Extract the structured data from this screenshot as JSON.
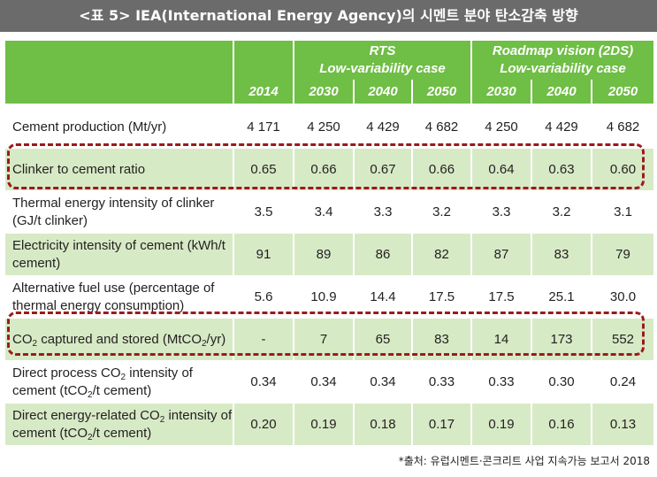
{
  "title": "<표 5> IEA(International Energy Agency)의 시멘트 분야 탄소감축 방향",
  "header": {
    "group_rts": "RTS",
    "group_rts_sub": "Low-variability case",
    "group_2ds": "Roadmap vision (2DS)",
    "group_2ds_sub": "Low-variability case",
    "years": [
      "2014",
      "2030",
      "2040",
      "2050",
      "2030",
      "2040",
      "2050"
    ]
  },
  "rows": [
    {
      "label": "Cement production (Mt/yr)",
      "values": [
        "4 171",
        "4 250",
        "4 429",
        "4 682",
        "4 250",
        "4 429",
        "4 682"
      ]
    },
    {
      "label": "Clinker to cement ratio",
      "values": [
        "0.65",
        "0.66",
        "0.67",
        "0.66",
        "0.64",
        "0.63",
        "0.60"
      ]
    },
    {
      "label": "Thermal energy intensity of clinker (GJ/t clinker)",
      "values": [
        "3.5",
        "3.4",
        "3.3",
        "3.2",
        "3.3",
        "3.2",
        "3.1"
      ]
    },
    {
      "label": "Electricity intensity of cement (kWh/t cement)",
      "values": [
        "91",
        "89",
        "86",
        "82",
        "87",
        "83",
        "79"
      ]
    },
    {
      "label": "Alternative fuel use (percentage of thermal energy consumption)",
      "values": [
        "5.6",
        "10.9",
        "14.4",
        "17.5",
        "17.5",
        "25.1",
        "30.0"
      ]
    },
    {
      "label_parts": [
        "CO",
        "2",
        " captured and stored (MtCO",
        "2",
        "/yr)"
      ],
      "values": [
        "-",
        "7",
        "65",
        "83",
        "14",
        "173",
        "552"
      ]
    },
    {
      "label_parts": [
        "Direct process CO",
        "2",
        " intensity of cement (tCO",
        "2",
        "/t cement)"
      ],
      "values": [
        "0.34",
        "0.34",
        "0.34",
        "0.33",
        "0.33",
        "0.30",
        "0.24"
      ]
    },
    {
      "label_parts": [
        "Direct energy-related CO",
        "2",
        " intensity of cement (tCO",
        "2",
        "/t cement)"
      ],
      "values": [
        "0.20",
        "0.19",
        "0.18",
        "0.17",
        "0.19",
        "0.16",
        "0.13"
      ]
    }
  ],
  "source": "*출처: 유럽시멘트·콘크리트 사업 지속가능 보고서 2018",
  "colors": {
    "header_green": "#6fbe45",
    "row_shade": "#d7eac6",
    "highlight": "#9b1b1b",
    "title_bar": "#6b6b6b"
  }
}
